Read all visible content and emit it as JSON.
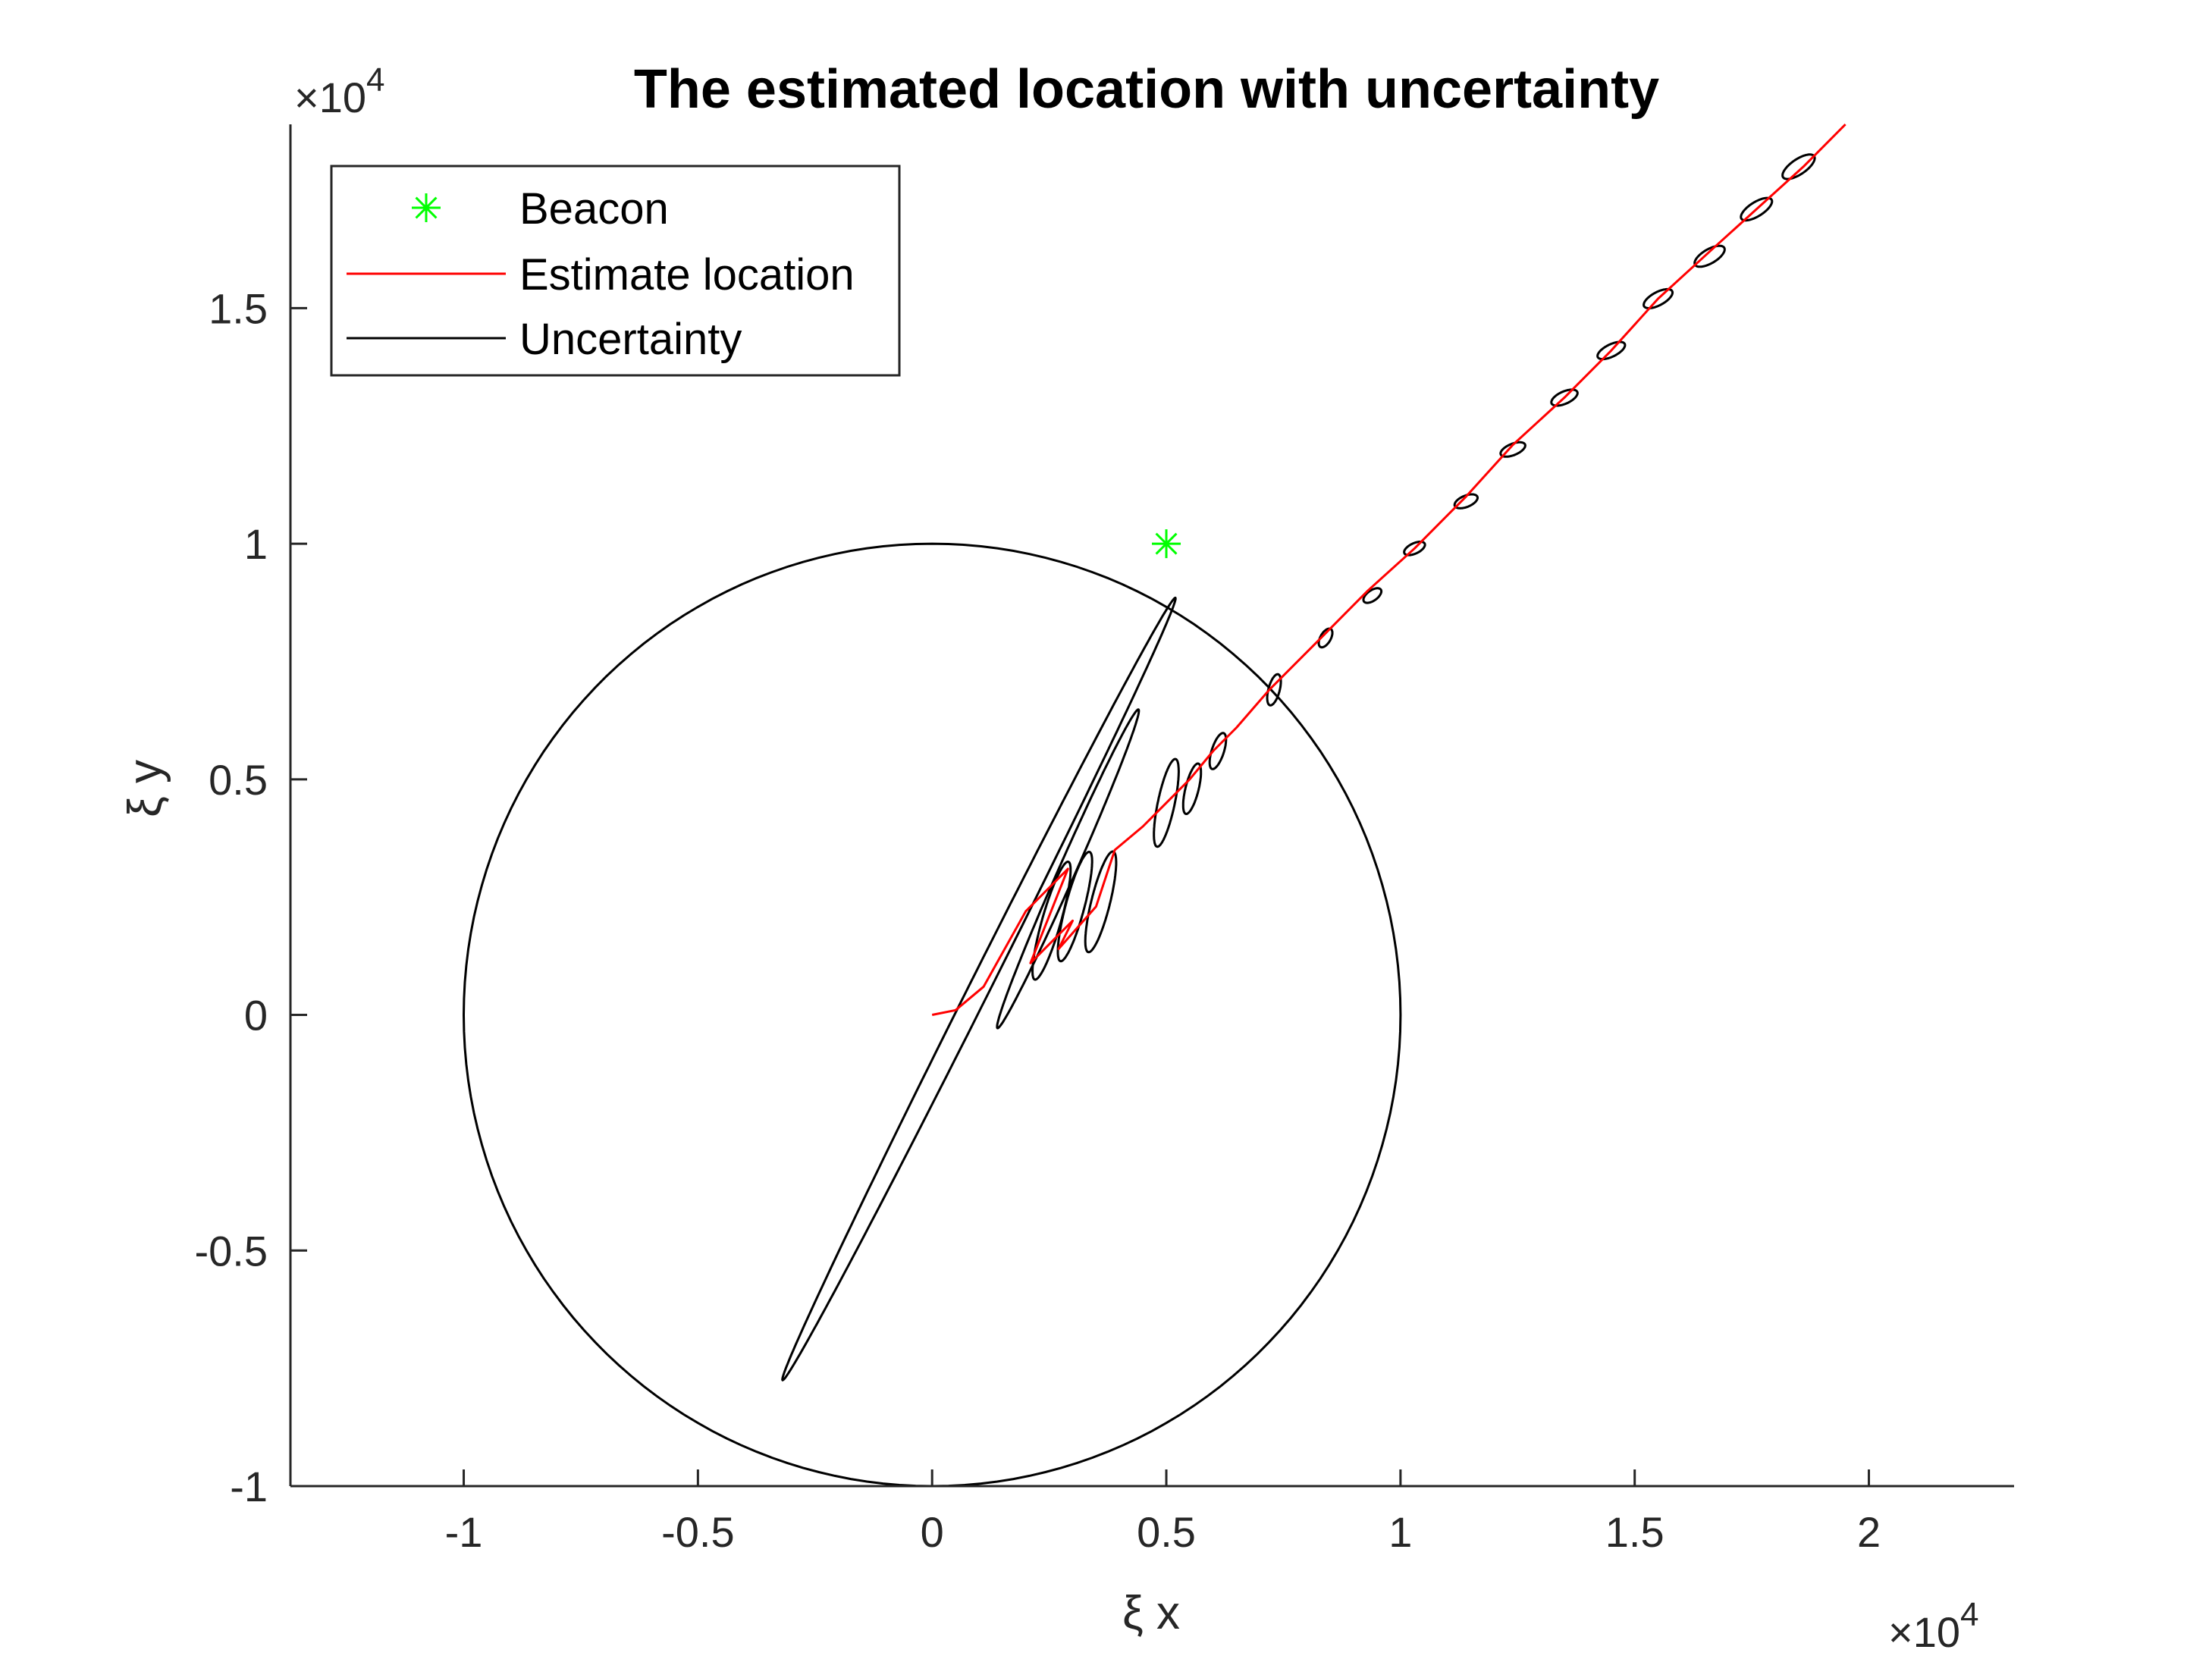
{
  "chart_data": {
    "type": "line",
    "title": "The estimated location with uncertainty",
    "xlabel": "ξ x",
    "ylabel": "ξ y",
    "x_multiplier": "×10^4",
    "y_multiplier": "×10^4",
    "x_multiplier_base": "×10",
    "x_multiplier_exp": "4",
    "y_multiplier_base": "×10",
    "y_multiplier_exp": "4",
    "xlim": [
      -1.37,
      2.31
    ],
    "ylim": [
      -1.0,
      1.89
    ],
    "x_ticks": [
      "-1",
      "-0.5",
      "0",
      "0.5",
      "1",
      "1.5",
      "2"
    ],
    "y_ticks": [
      "-1",
      "-0.5",
      "0",
      "0.5",
      "1",
      "1.5"
    ],
    "legend_position": "top-left",
    "legend": [
      {
        "label": "Beacon",
        "color": "#00ff00",
        "marker": "asterisk"
      },
      {
        "label": "Estimate location",
        "color": "#ff0000",
        "marker": "line"
      },
      {
        "label": "Uncertainty",
        "color": "#000000",
        "marker": "line"
      }
    ],
    "series": [
      {
        "name": "Beacon",
        "type": "scatter",
        "color": "#00ff00",
        "points": [
          [
            0.5,
            1.0
          ]
        ]
      },
      {
        "name": "Estimate location",
        "type": "line",
        "color": "#ff0000",
        "points": [
          [
            0.0,
            0.0
          ],
          [
            0.05,
            0.01
          ],
          [
            0.11,
            0.06
          ],
          [
            0.2,
            0.22
          ],
          [
            0.24,
            0.26
          ],
          [
            0.29,
            0.31
          ],
          [
            0.21,
            0.11
          ],
          [
            0.3,
            0.2
          ],
          [
            0.27,
            0.14
          ],
          [
            0.35,
            0.23
          ],
          [
            0.39,
            0.35
          ],
          [
            0.45,
            0.4
          ],
          [
            0.5,
            0.45
          ],
          [
            0.55,
            0.5
          ],
          [
            0.6,
            0.56
          ],
          [
            0.65,
            0.61
          ],
          [
            0.72,
            0.69
          ],
          [
            0.83,
            0.8
          ],
          [
            0.93,
            0.9
          ],
          [
            1.03,
            0.99
          ],
          [
            1.14,
            1.1
          ],
          [
            1.24,
            1.21
          ],
          [
            1.35,
            1.31
          ],
          [
            1.45,
            1.41
          ],
          [
            1.55,
            1.52
          ],
          [
            1.66,
            1.62
          ],
          [
            1.76,
            1.71
          ],
          [
            1.86,
            1.8
          ],
          [
            1.95,
            1.89
          ]
        ]
      },
      {
        "name": "Uncertainty",
        "type": "ellipses",
        "color": "#000000",
        "ellipses": [
          {
            "cx": 0.0,
            "cy": 0.0,
            "a": 1.0,
            "b": 1.0,
            "angle": 0
          },
          {
            "cx": 0.1,
            "cy": 0.055,
            "a": 0.93,
            "b": 0.022,
            "angle": 63.2
          },
          {
            "cx": 0.29,
            "cy": 0.31,
            "a": 0.37,
            "b": 0.018,
            "angle": 66
          },
          {
            "cx": 0.255,
            "cy": 0.2,
            "a": 0.13,
            "b": 0.02,
            "angle": 74
          },
          {
            "cx": 0.305,
            "cy": 0.23,
            "a": 0.12,
            "b": 0.02,
            "angle": 75
          },
          {
            "cx": 0.36,
            "cy": 0.24,
            "a": 0.11,
            "b": 0.02,
            "angle": 76
          },
          {
            "cx": 0.5,
            "cy": 0.45,
            "a": 0.095,
            "b": 0.018,
            "angle": 78
          },
          {
            "cx": 0.555,
            "cy": 0.48,
            "a": 0.055,
            "b": 0.014,
            "angle": 76
          },
          {
            "cx": 0.61,
            "cy": 0.56,
            "a": 0.04,
            "b": 0.013,
            "angle": 72
          },
          {
            "cx": 0.73,
            "cy": 0.69,
            "a": 0.034,
            "b": 0.012,
            "angle": 75
          },
          {
            "cx": 0.84,
            "cy": 0.8,
            "a": 0.022,
            "b": 0.011,
            "angle": 60
          },
          {
            "cx": 0.94,
            "cy": 0.89,
            "a": 0.022,
            "b": 0.011,
            "angle": 35
          },
          {
            "cx": 1.03,
            "cy": 0.99,
            "a": 0.024,
            "b": 0.011,
            "angle": 25
          },
          {
            "cx": 1.14,
            "cy": 1.09,
            "a": 0.026,
            "b": 0.012,
            "angle": 22
          },
          {
            "cx": 1.24,
            "cy": 1.2,
            "a": 0.028,
            "b": 0.012,
            "angle": 22
          },
          {
            "cx": 1.35,
            "cy": 1.31,
            "a": 0.03,
            "b": 0.013,
            "angle": 24
          },
          {
            "cx": 1.45,
            "cy": 1.41,
            "a": 0.032,
            "b": 0.013,
            "angle": 26
          },
          {
            "cx": 1.55,
            "cy": 1.52,
            "a": 0.034,
            "b": 0.014,
            "angle": 28
          },
          {
            "cx": 1.66,
            "cy": 1.61,
            "a": 0.036,
            "b": 0.015,
            "angle": 30
          },
          {
            "cx": 1.76,
            "cy": 1.71,
            "a": 0.038,
            "b": 0.015,
            "angle": 32
          },
          {
            "cx": 1.85,
            "cy": 1.8,
            "a": 0.04,
            "b": 0.016,
            "angle": 34
          }
        ]
      }
    ]
  }
}
